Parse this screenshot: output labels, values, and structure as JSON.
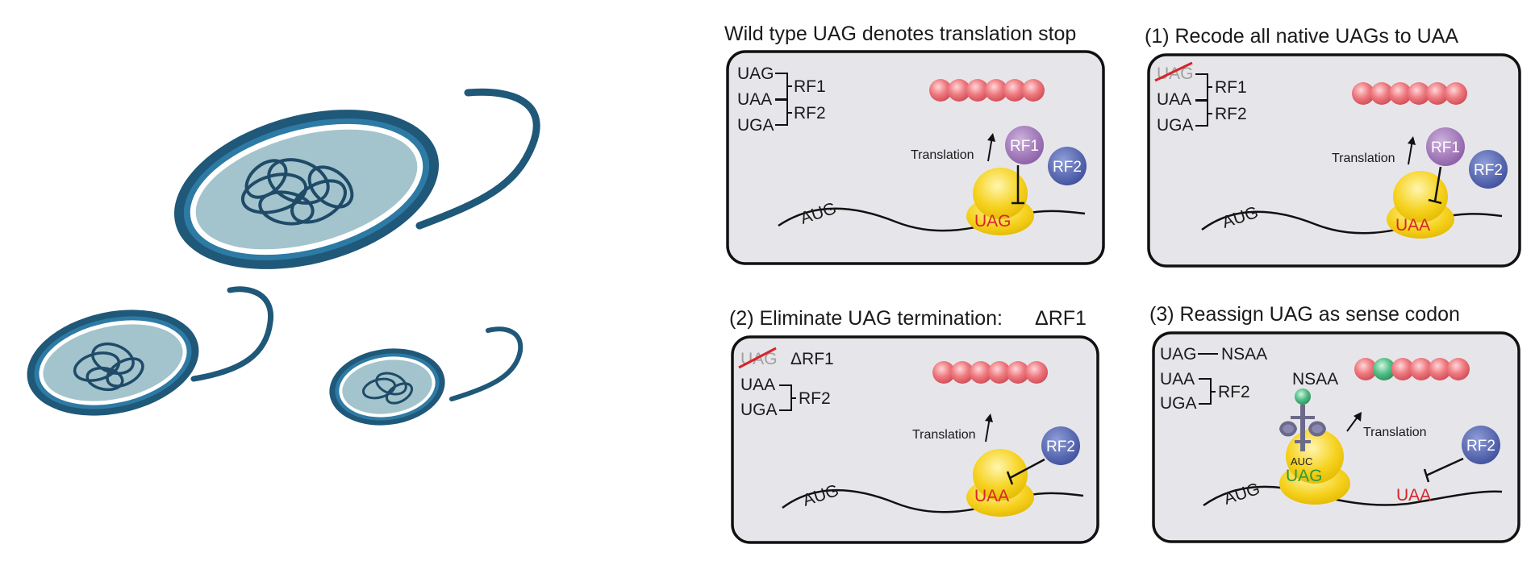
{
  "panels": {
    "p1": {
      "title": "Wild type UAG denotes translation stop",
      "codons": [
        "UAG",
        "UAA",
        "UGA"
      ],
      "rf1": "RF1",
      "rf2": "RF2",
      "translation": "Translation",
      "start": "AUG",
      "stop": "UAG"
    },
    "p2": {
      "title": "(1) Recode all native UAGs to UAA",
      "codons": [
        "UAG",
        "UAA",
        "UGA"
      ],
      "rf1": "RF1",
      "rf2": "RF2",
      "translation": "Translation",
      "start": "AUG",
      "stop": "UAA"
    },
    "p3": {
      "title": "(2) Eliminate UAG termination:",
      "title_right": "ΔRF1",
      "codons": [
        "UAG",
        "UAA",
        "UGA"
      ],
      "deleted": "ΔRF1",
      "rf2": "RF2",
      "translation": "Translation",
      "start": "AUG",
      "stop": "UAA"
    },
    "p4": {
      "title": "(3) Reassign UAG as sense codon",
      "codons": [
        "UAG",
        "UAA",
        "UGA"
      ],
      "nsaa": "NSAA",
      "rf2": "RF2",
      "translation": "Translation",
      "start": "AUG",
      "anticodon": "AUC",
      "sense": "UAG",
      "stop": "UAA"
    }
  },
  "colors": {
    "panel_bg": "#e6e6ea",
    "bead": "#ee7a80",
    "nsaa": "#56c08a",
    "rf1": "#9b6fb3",
    "rf2": "#5566b0",
    "ribosome": "#f6d21f",
    "cell_dark": "#1f5878",
    "cell_mid": "#2d7aa4",
    "cell_fill": "#a3c4cc"
  }
}
